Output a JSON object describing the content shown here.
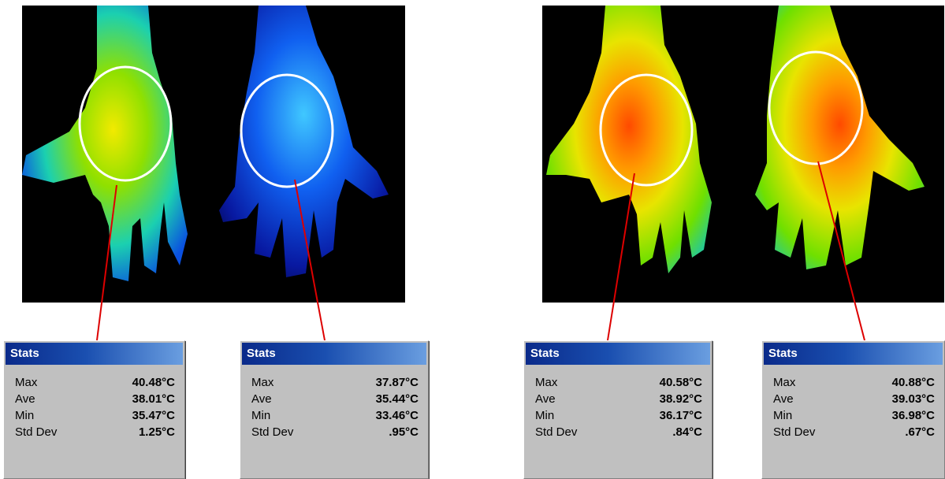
{
  "images": [
    {
      "name": "thermal-image-left",
      "hands": [
        "warm",
        "cool"
      ]
    },
    {
      "name": "thermal-image-right",
      "hands": [
        "hot",
        "hot"
      ]
    }
  ],
  "panels": [
    {
      "title": "Stats",
      "rows": [
        {
          "label": "Max",
          "value": "40.48°C"
        },
        {
          "label": "Ave",
          "value": "38.01°C"
        },
        {
          "label": "Min",
          "value": "35.47°C"
        },
        {
          "label": "Std Dev",
          "value": "1.25°C"
        }
      ]
    },
    {
      "title": "Stats",
      "rows": [
        {
          "label": "Max",
          "value": "37.87°C"
        },
        {
          "label": "Ave",
          "value": "35.44°C"
        },
        {
          "label": "Min",
          "value": "33.46°C"
        },
        {
          "label": "Std Dev",
          "value": ".95°C"
        }
      ]
    },
    {
      "title": "Stats",
      "rows": [
        {
          "label": "Max",
          "value": "40.58°C"
        },
        {
          "label": "Ave",
          "value": "38.92°C"
        },
        {
          "label": "Min",
          "value": "36.17°C"
        },
        {
          "label": "Std Dev",
          "value": ".84°C"
        }
      ]
    },
    {
      "title": "Stats",
      "rows": [
        {
          "label": "Max",
          "value": "40.88°C"
        },
        {
          "label": "Ave",
          "value": "39.03°C"
        },
        {
          "label": "Min",
          "value": "36.98°C"
        },
        {
          "label": "Std Dev",
          "value": ".67°C"
        }
      ]
    }
  ],
  "colors": {
    "roi_circle": "#ffffff",
    "leader_line": "#dd0000",
    "title_bar": "#0a2a8a"
  }
}
